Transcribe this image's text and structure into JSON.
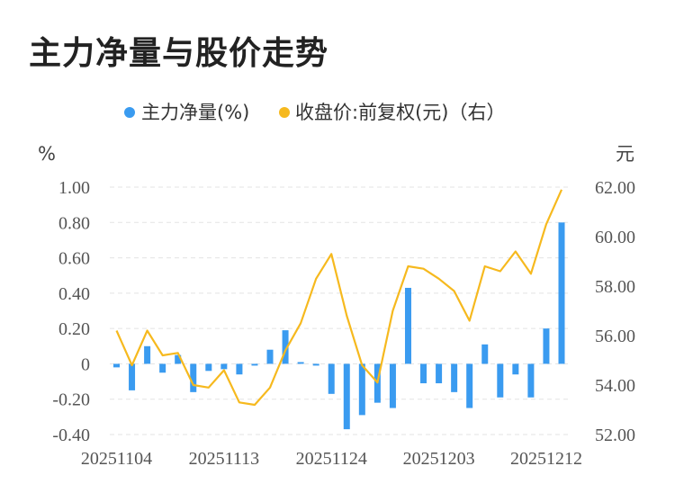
{
  "page": {
    "title": "主力净量与股价走势"
  },
  "chart_data": {
    "type": "bar+line",
    "legend": [
      {
        "label": "主力净量(%)",
        "color": "#3a9bf0"
      },
      {
        "label": "收盘价:前复权(元)（右）",
        "color": "#f6b91e"
      }
    ],
    "y_left_unit": "%",
    "y_right_unit": "元",
    "y_left_ticks": [
      "1.00",
      "0.80",
      "0.60",
      "0.40",
      "0.20",
      "0",
      "-0.20",
      "-0.40"
    ],
    "y_right_ticks": [
      "62.00",
      "60.00",
      "58.00",
      "56.00",
      "54.00",
      "52.00"
    ],
    "y_left_range": [
      -0.4,
      1.0
    ],
    "y_right_range": [
      52,
      62
    ],
    "x_labels": [
      "20251104",
      "20251113",
      "20251124",
      "20251203",
      "20251212"
    ],
    "x_label_indices": [
      0,
      7,
      14,
      21,
      28
    ],
    "series": [
      {
        "name": "主力净量(%)",
        "kind": "bar",
        "values": [
          -0.02,
          -0.15,
          0.1,
          -0.05,
          0.05,
          -0.16,
          -0.04,
          -0.03,
          -0.06,
          -0.01,
          0.08,
          0.19,
          0.01,
          -0.01,
          -0.17,
          -0.37,
          -0.29,
          -0.22,
          -0.25,
          0.43,
          -0.11,
          -0.11,
          -0.16,
          -0.25,
          0.11,
          -0.19,
          -0.06,
          -0.19,
          0.2,
          0.8
        ]
      },
      {
        "name": "收盘价:前复权(元)（右）",
        "kind": "line",
        "axis": "right",
        "values": [
          56.2,
          54.8,
          56.2,
          55.2,
          55.3,
          54.0,
          53.9,
          54.6,
          53.3,
          53.2,
          53.9,
          55.4,
          56.5,
          58.3,
          59.3,
          56.8,
          54.8,
          54.1,
          57.0,
          58.8,
          58.7,
          58.3,
          57.8,
          56.6,
          58.8,
          58.6,
          59.4,
          58.5,
          60.5,
          61.9
        ]
      }
    ]
  }
}
